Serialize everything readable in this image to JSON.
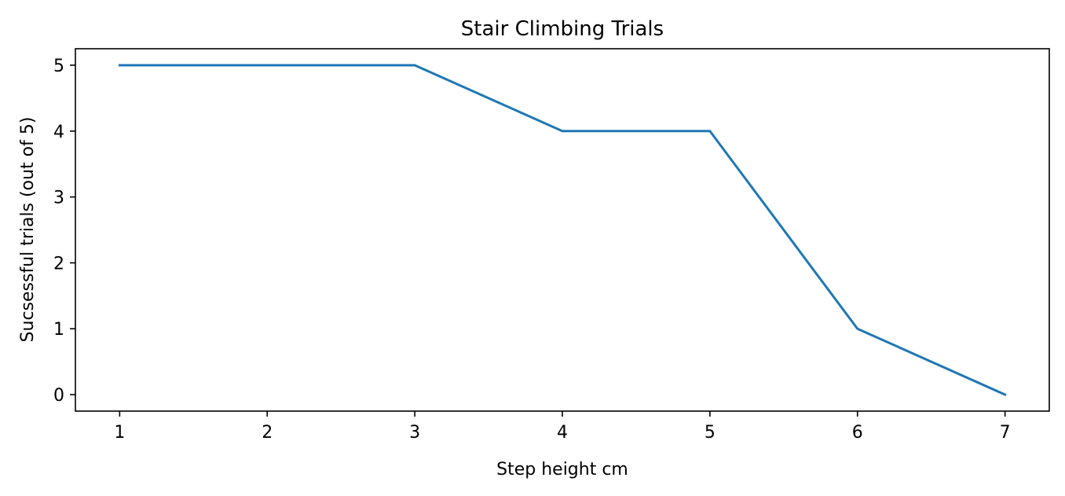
{
  "chart_data": {
    "type": "line",
    "title": "Stair Climbing Trials",
    "xlabel": "Step height cm",
    "ylabel": "Sucsessful trials (out of 5)",
    "x": [
      1,
      2,
      3,
      4,
      5,
      6,
      7
    ],
    "series": [
      {
        "name": "Successful trials",
        "values": [
          5,
          5,
          5,
          4,
          4,
          1,
          0
        ],
        "color": "#1f77b4"
      }
    ],
    "xlim": [
      0.7,
      7.3
    ],
    "ylim": [
      -0.25,
      5.25
    ],
    "xticks": [
      1,
      2,
      3,
      4,
      5,
      6,
      7
    ],
    "yticks": [
      0,
      1,
      2,
      3,
      4,
      5
    ],
    "grid": false,
    "legend": "none"
  }
}
